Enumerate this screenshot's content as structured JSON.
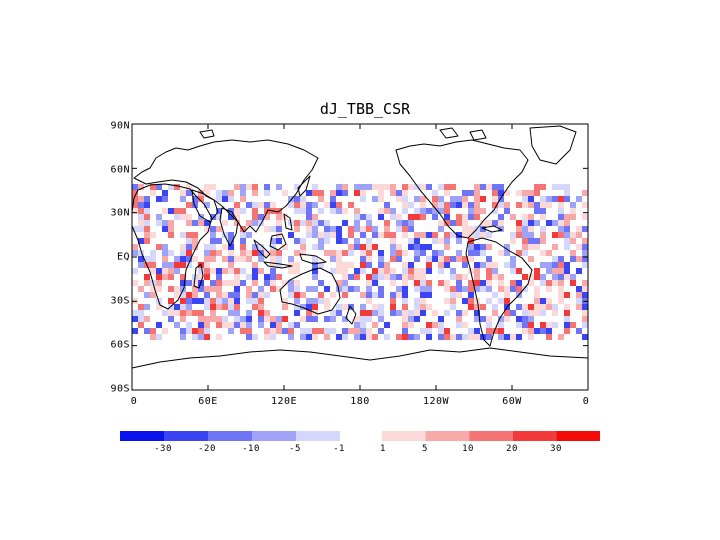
{
  "title": "dJ_TBB_CSR",
  "y_ticks": [
    "90N",
    "60N",
    "30N",
    "EQ",
    "30S",
    "60S",
    "90S"
  ],
  "x_ticks": [
    "0",
    "60E",
    "120E",
    "180",
    "120W",
    "60W",
    "0"
  ],
  "colorbar": {
    "negative": {
      "colors": [
        "#0a12ee",
        "#3a44f2",
        "#6f75f5",
        "#9fa3f7",
        "#d4d6fb"
      ],
      "labels": [
        "-30",
        "-20",
        "-10",
        "-5",
        "-1"
      ]
    },
    "positive": {
      "colors": [
        "#fbd9d9",
        "#f7a9a9",
        "#f47373",
        "#f23a3a",
        "#f50a0a"
      ],
      "labels": [
        "1",
        "5",
        "10",
        "20",
        "30"
      ]
    }
  }
}
